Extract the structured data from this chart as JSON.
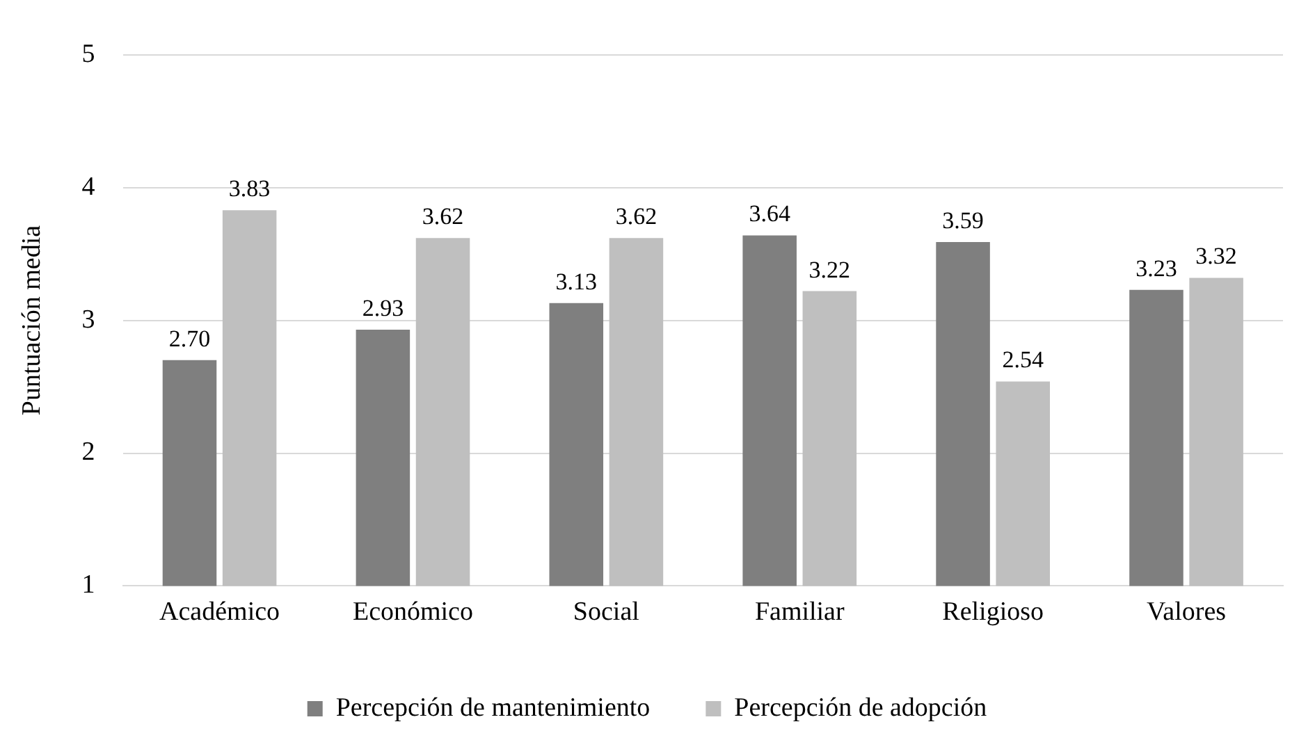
{
  "chart_data": {
    "type": "bar",
    "ylabel": "Puntuación media",
    "categories": [
      "Académico",
      "Económico",
      "Social",
      "Familiar",
      "Religioso",
      "Valores"
    ],
    "series": [
      {
        "name": "Percepción de mantenimiento",
        "color": "#7f7f7f",
        "values": [
          2.7,
          2.93,
          3.13,
          3.64,
          3.59,
          3.23
        ],
        "value_labels": [
          "2.70",
          "2.93",
          "3.13",
          "3.64",
          "3.59",
          "3.23"
        ]
      },
      {
        "name": "Percepción de adopción",
        "color": "#bfbfbf",
        "values": [
          3.83,
          3.62,
          3.62,
          3.22,
          2.54,
          3.32
        ],
        "value_labels": [
          "3.83",
          "3.62",
          "3.62",
          "3.22",
          "2.54",
          "3.32"
        ]
      }
    ],
    "ylim": [
      1,
      5
    ],
    "yticks": [
      1,
      2,
      3,
      4,
      5
    ],
    "grid": "y",
    "legend": "bottom"
  }
}
